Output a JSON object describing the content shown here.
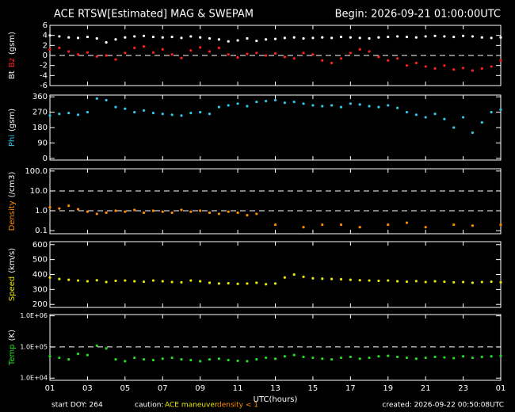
{
  "header": {
    "title": "ACE RTSW[Estimated] MAG & SWEPAM",
    "begin": "Begin: 2026-09-21 01:00:00UTC"
  },
  "footer": {
    "start_doy": "start DOY: 264",
    "caution": "caution:",
    "maneuver": "ACE maneuver",
    "density_note": "density < 1",
    "created": "created: 2026-09-22 00:50:08UTC"
  },
  "chart_data": [
    {
      "type": "scatter",
      "unit": "(gsm)",
      "xlim": [
        0,
        24
      ],
      "xticks": [
        0,
        2,
        4,
        6,
        8,
        10,
        12,
        14,
        16,
        18,
        20,
        22,
        24
      ],
      "ylim": [
        -6,
        6
      ],
      "yticks": [
        6,
        4,
        2,
        0,
        -2,
        -4,
        -6
      ],
      "ref_lines": [
        0
      ],
      "log": false,
      "x": [
        0,
        0.5,
        1,
        1.5,
        2,
        2.5,
        3,
        3.5,
        4,
        4.5,
        5,
        5.5,
        6,
        6.5,
        7,
        7.5,
        8,
        8.5,
        9,
        9.5,
        10,
        10.5,
        11,
        11.5,
        12,
        12.5,
        13,
        13.5,
        14,
        14.5,
        15,
        15.5,
        16,
        16.5,
        17,
        17.5,
        18,
        18.5,
        19,
        19.5,
        20,
        20.5,
        21,
        21.5,
        22,
        22.5,
        23,
        23.5,
        24
      ],
      "series": [
        {
          "name": "Bt",
          "color": "#ffffff",
          "values": [
            4.0,
            3.8,
            3.6,
            3.5,
            3.7,
            3.4,
            2.6,
            3.2,
            3.6,
            3.8,
            3.9,
            3.7,
            3.6,
            3.7,
            3.5,
            3.8,
            3.6,
            3.4,
            3.2,
            2.8,
            3.0,
            3.4,
            2.9,
            3.2,
            3.3,
            3.5,
            3.6,
            3.4,
            3.5,
            3.6,
            3.5,
            3.7,
            3.6,
            3.5,
            3.4,
            3.6,
            3.7,
            3.8,
            3.7,
            3.6,
            3.8,
            3.9,
            3.8,
            3.7,
            3.9,
            3.8,
            3.6,
            3.5,
            3.6
          ]
        },
        {
          "name": "Bz",
          "color": "#ff2020",
          "values": [
            1.2,
            1.5,
            0.8,
            0.2,
            0.6,
            -0.2,
            0.0,
            -0.8,
            0.5,
            1.5,
            1.8,
            0.6,
            1.2,
            0.2,
            -0.5,
            1.0,
            1.6,
            0.8,
            1.5,
            0.2,
            -0.4,
            0.3,
            0.5,
            0.0,
            0.4,
            -0.3,
            -0.6,
            0.5,
            0.2,
            -1.0,
            -1.5,
            -0.6,
            0.5,
            1.2,
            0.8,
            -0.3,
            -1.0,
            -0.6,
            -2.0,
            -1.5,
            -2.2,
            -2.6,
            -2.0,
            -2.8,
            -2.5,
            -3.0,
            -2.6,
            -2.2,
            -1.0
          ]
        }
      ]
    },
    {
      "type": "scatter",
      "unit": "(gsm)",
      "xlim": [
        0,
        24
      ],
      "xticks": [
        0,
        2,
        4,
        6,
        8,
        10,
        12,
        14,
        16,
        18,
        20,
        22,
        24
      ],
      "ylim": [
        -10,
        370
      ],
      "yticks": [
        360,
        270,
        180,
        90,
        0
      ],
      "log": false,
      "x": [
        0,
        0.5,
        1,
        1.5,
        2,
        2.5,
        3,
        3.5,
        4,
        4.5,
        5,
        5.5,
        6,
        6.5,
        7,
        7.5,
        8,
        8.5,
        9,
        9.5,
        10,
        10.5,
        11,
        11.5,
        12,
        12.5,
        13,
        13.5,
        14,
        14.5,
        15,
        15.5,
        16,
        16.5,
        17,
        17.5,
        18,
        18.5,
        19,
        19.5,
        20,
        20.5,
        21,
        21.5,
        22,
        22.5,
        23,
        23.5,
        24
      ],
      "series": [
        {
          "name": "Phi",
          "color": "#30c8e8",
          "values": [
            250,
            260,
            265,
            255,
            270,
            350,
            340,
            300,
            290,
            270,
            280,
            265,
            260,
            255,
            250,
            265,
            270,
            260,
            300,
            310,
            320,
            305,
            330,
            335,
            340,
            325,
            330,
            320,
            310,
            305,
            310,
            300,
            320,
            315,
            305,
            300,
            310,
            295,
            270,
            255,
            240,
            260,
            230,
            180,
            240,
            150,
            210,
            270,
            285
          ]
        }
      ]
    },
    {
      "type": "scatter",
      "unit": "(/cm3)",
      "xlim": [
        0,
        24
      ],
      "xticks": [
        0,
        2,
        4,
        6,
        8,
        10,
        12,
        14,
        16,
        18,
        20,
        22,
        24
      ],
      "ylim": [
        0.07,
        130
      ],
      "yticks": [
        {
          "value": 100,
          "label": "100.0"
        },
        {
          "value": 10,
          "label": "10.0"
        },
        {
          "value": 1,
          "label": "1.0"
        },
        0.1
      ],
      "ref_lines": [
        1,
        10
      ],
      "log": true,
      "x": [
        0,
        0.5,
        1,
        1.5,
        2,
        2.5,
        3,
        3.5,
        4,
        4.5,
        5,
        5.5,
        6,
        6.5,
        7,
        7.5,
        8,
        8.5,
        9,
        9.5,
        10,
        10.5,
        11,
        11.5,
        12,
        12.5,
        13,
        13.5,
        14,
        14.5,
        15,
        15.5,
        16,
        16.5,
        17,
        17.5,
        18,
        18.5,
        19,
        19.5,
        20,
        20.5,
        21,
        21.5,
        22,
        22.5,
        23,
        23.5,
        24
      ],
      "series": [
        {
          "name": "Density",
          "color": "#ff8c00",
          "values": [
            1.5,
            1.3,
            1.8,
            1.2,
            0.9,
            0.7,
            0.8,
            1.0,
            0.9,
            1.1,
            0.8,
            1.0,
            0.9,
            0.8,
            1.1,
            0.9,
            1.0,
            0.8,
            0.7,
            0.9,
            0.8,
            0.6,
            0.7,
            null,
            0.2,
            null,
            null,
            0.15,
            null,
            0.2,
            null,
            0.2,
            null,
            0.15,
            null,
            null,
            0.2,
            null,
            0.25,
            null,
            0.15,
            null,
            null,
            0.2,
            null,
            0.18,
            null,
            null,
            0.2
          ]
        }
      ]
    },
    {
      "type": "scatter",
      "unit": "(km/s)",
      "xlim": [
        0,
        24
      ],
      "xticks": [
        0,
        2,
        4,
        6,
        8,
        10,
        12,
        14,
        16,
        18,
        20,
        22,
        24
      ],
      "ylim": [
        180,
        620
      ],
      "yticks": [
        600,
        500,
        400,
        300,
        200
      ],
      "log": false,
      "x": [
        0,
        0.5,
        1,
        1.5,
        2,
        2.5,
        3,
        3.5,
        4,
        4.5,
        5,
        5.5,
        6,
        6.5,
        7,
        7.5,
        8,
        8.5,
        9,
        9.5,
        10,
        10.5,
        11,
        11.5,
        12,
        12.5,
        13,
        13.5,
        14,
        14.5,
        15,
        15.5,
        16,
        16.5,
        17,
        17.5,
        18,
        18.5,
        19,
        19.5,
        20,
        20.5,
        21,
        21.5,
        22,
        22.5,
        23,
        23.5,
        24
      ],
      "series": [
        {
          "name": "Speed",
          "color": "#e8e800",
          "values": [
            380,
            370,
            365,
            360,
            355,
            362,
            350,
            358,
            360,
            355,
            352,
            360,
            355,
            350,
            348,
            360,
            355,
            345,
            340,
            342,
            338,
            340,
            345,
            335,
            340,
            380,
            400,
            385,
            375,
            372,
            370,
            368,
            365,
            362,
            360,
            358,
            360,
            355,
            352,
            356,
            350,
            355,
            352,
            348,
            350,
            345,
            350,
            352,
            348
          ]
        }
      ]
    },
    {
      "type": "scatter",
      "unit": "(K)",
      "xlim": [
        0,
        24
      ],
      "xticks": [
        {
          "value": 0,
          "label": "01"
        },
        {
          "value": 2,
          "label": "03"
        },
        {
          "value": 4,
          "label": "05"
        },
        {
          "value": 6,
          "label": "07"
        },
        {
          "value": 8,
          "label": "09"
        },
        {
          "value": 10,
          "label": "11"
        },
        {
          "value": 12,
          "label": "13"
        },
        {
          "value": 14,
          "label": "15"
        },
        {
          "value": 16,
          "label": "17"
        },
        {
          "value": 18,
          "label": "19"
        },
        {
          "value": 20,
          "label": "21"
        },
        {
          "value": 22,
          "label": "23"
        },
        {
          "value": 24,
          "label": "01"
        }
      ],
      "xlabel": "UTC(hours)",
      "ylim": [
        8500,
        1100000
      ],
      "yticks": [
        {
          "value": 1000000,
          "label": "1.0E+06"
        },
        {
          "value": 100000,
          "label": "1.0E+05"
        },
        {
          "value": 10000,
          "label": "1.0E+04"
        }
      ],
      "ref_lines": [
        100000
      ],
      "log": true,
      "x": [
        0,
        0.5,
        1,
        1.5,
        2,
        2.5,
        3,
        3.5,
        4,
        4.5,
        5,
        5.5,
        6,
        6.5,
        7,
        7.5,
        8,
        8.5,
        9,
        9.5,
        10,
        10.5,
        11,
        11.5,
        12,
        12.5,
        13,
        13.5,
        14,
        14.5,
        15,
        15.5,
        16,
        16.5,
        17,
        17.5,
        18,
        18.5,
        19,
        19.5,
        20,
        20.5,
        21,
        21.5,
        22,
        22.5,
        23,
        23.5,
        24
      ],
      "series": [
        {
          "name": "Temp",
          "color": "#20e020",
          "values": [
            50000,
            45000,
            40000,
            60000,
            55000,
            110000,
            90000,
            40000,
            35000,
            45000,
            40000,
            38000,
            42000,
            45000,
            40000,
            38000,
            35000,
            40000,
            42000,
            38000,
            36000,
            35000,
            40000,
            45000,
            42000,
            50000,
            55000,
            48000,
            45000,
            42000,
            40000,
            45000,
            48000,
            42000,
            45000,
            50000,
            52000,
            48000,
            45000,
            42000,
            45000,
            48000,
            46000,
            44000,
            50000,
            45000,
            48000,
            50000,
            52000
          ]
        }
      ]
    }
  ]
}
